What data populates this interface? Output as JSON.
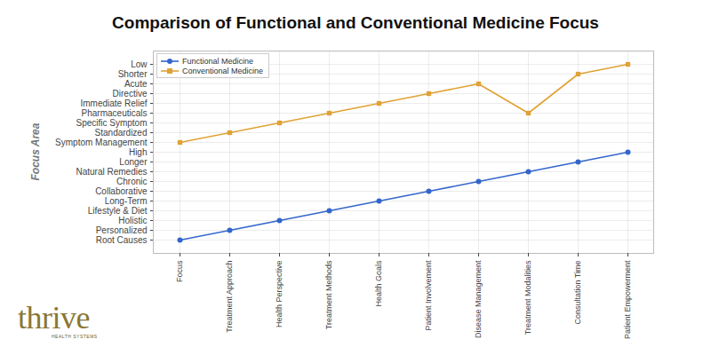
{
  "chart_data": {
    "type": "line",
    "title": "Comparison of Functional and Conventional Medicine Focus",
    "y_label": "Focus Area",
    "categories": [
      "Focus",
      "Treatment Approach",
      "Health Perspective",
      "Treatment Methods",
      "Health Goals",
      "Patient Involvement",
      "Disease Management",
      "Treatment Modalities",
      "Consultation Time",
      "Patient Empowerment"
    ],
    "y_categories": [
      "Low",
      "Shorter",
      "Acute",
      "Directive",
      "Immediate Relief",
      "Pharmaceuticals",
      "Specific Symptom",
      "Standardized",
      "Symptom Management",
      "High",
      "Longer",
      "Natural Remedies",
      "Chronic",
      "Collaborative",
      "Long-Term",
      "Lifestyle & Diet",
      "Holistic",
      "Personalized",
      "Root Causes"
    ],
    "series": [
      {
        "name": "Functional Medicine",
        "color": "#3366cc",
        "marker": "circle",
        "line_style": "solid",
        "values": [
          "Root Causes",
          "Personalized",
          "Holistic",
          "Lifestyle & Diet",
          "Long-Term",
          "Collaborative",
          "Chronic",
          "Natural Remedies",
          "Longer",
          "High"
        ]
      },
      {
        "name": "Conventional Medicine",
        "color": "#e0a234",
        "marker": "square",
        "line_style": "solid",
        "values": [
          "Symptom Management",
          "Standardized",
          "Specific Symptom",
          "Pharmaceuticals",
          "Immediate Relief",
          "Directive",
          "Acute",
          "Pharmaceuticals",
          "Shorter",
          "Low"
        ]
      }
    ],
    "grid": true,
    "legend": "upper left",
    "annotations": [
      "thrive",
      "HEALTH SYSTEMS"
    ]
  }
}
